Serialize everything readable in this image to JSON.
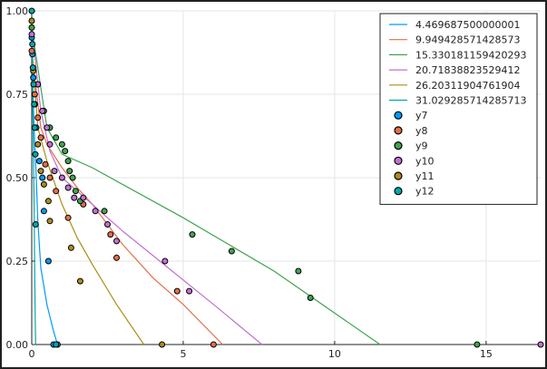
{
  "chart_data": {
    "type": "line",
    "title": "",
    "xlabel": "",
    "ylabel": "",
    "xlim": [
      0,
      16.8
    ],
    "ylim": [
      0,
      1.0
    ],
    "x_ticks": [
      0,
      5,
      10,
      15
    ],
    "y_ticks": [
      0.0,
      0.25,
      0.5,
      0.75,
      1.0
    ],
    "x_tick_labels": [
      "0",
      "5",
      "10",
      "15"
    ],
    "y_tick_labels": [
      "0.00",
      "0.25",
      "0.50",
      "0.75",
      "1.00"
    ],
    "grid": true,
    "legend_position": "top-right",
    "line_series": [
      {
        "name": "4.469687500000001",
        "color": "#009AFA",
        "points": [
          [
            0,
            1.0
          ],
          [
            0.01,
            0.9
          ],
          [
            0.03,
            0.8
          ],
          [
            0.06,
            0.7
          ],
          [
            0.1,
            0.6
          ],
          [
            0.15,
            0.5
          ],
          [
            0.2,
            0.37
          ],
          [
            0.3,
            0.23
          ],
          [
            0.5,
            0.12
          ],
          [
            0.72,
            0.04
          ],
          [
            0.85,
            0.0
          ]
        ]
      },
      {
        "name": "9.949428571428573",
        "color": "#E36F47",
        "points": [
          [
            0,
            0.87
          ],
          [
            0.3,
            0.65
          ],
          [
            0.5,
            0.6
          ],
          [
            1.0,
            0.53
          ],
          [
            1.5,
            0.47
          ],
          [
            2.0,
            0.42
          ],
          [
            3.0,
            0.3
          ],
          [
            4.0,
            0.2
          ],
          [
            5.0,
            0.12
          ],
          [
            6.3,
            0.0
          ]
        ]
      },
      {
        "name": "15.330181159420293",
        "color": "#3EA44E",
        "points": [
          [
            0,
            0.95
          ],
          [
            0.5,
            0.65
          ],
          [
            1.0,
            0.57
          ],
          [
            2.0,
            0.53
          ],
          [
            5.0,
            0.38
          ],
          [
            8.0,
            0.22
          ],
          [
            11.5,
            0.0
          ]
        ]
      },
      {
        "name": "20.71838823529412",
        "color": "#C271D2",
        "points": [
          [
            0,
            0.95
          ],
          [
            0.3,
            0.7
          ],
          [
            0.6,
            0.58
          ],
          [
            1.0,
            0.5
          ],
          [
            2.0,
            0.42
          ],
          [
            3.0,
            0.34
          ],
          [
            4.5,
            0.23
          ],
          [
            6.0,
            0.12
          ],
          [
            7.6,
            0.0
          ]
        ]
      },
      {
        "name": "26.20311904761904",
        "color": "#AC8D18",
        "points": [
          [
            0,
            0.9
          ],
          [
            0.2,
            0.65
          ],
          [
            0.5,
            0.55
          ],
          [
            1.0,
            0.42
          ],
          [
            1.5,
            0.32
          ],
          [
            2.0,
            0.24
          ],
          [
            2.8,
            0.12
          ],
          [
            3.7,
            0.0
          ]
        ]
      },
      {
        "name": "31.029285714285713",
        "color": "#00A9AD",
        "points": [
          [
            0,
            1.0
          ],
          [
            0.02,
            0.8
          ],
          [
            0.05,
            0.6
          ],
          [
            0.08,
            0.4
          ],
          [
            0.1,
            0.2
          ],
          [
            0.12,
            0.05
          ],
          [
            0.13,
            0.0
          ]
        ]
      }
    ],
    "scatter_series": [
      {
        "name": "y7",
        "color": "#009AFA",
        "points": [
          [
            0,
            0.92
          ],
          [
            0.02,
            0.87
          ],
          [
            0.05,
            0.8
          ],
          [
            0.1,
            0.72
          ],
          [
            0.15,
            0.65
          ],
          [
            0.25,
            0.55
          ],
          [
            0.35,
            0.5
          ],
          [
            0.4,
            0.4
          ],
          [
            0.55,
            0.25
          ],
          [
            0.72,
            0.0
          ],
          [
            0.85,
            0.0
          ]
        ]
      },
      {
        "name": "y8",
        "color": "#E36F47",
        "points": [
          [
            0,
            0.88
          ],
          [
            0.1,
            0.75
          ],
          [
            0.2,
            0.68
          ],
          [
            0.3,
            0.62
          ],
          [
            0.45,
            0.54
          ],
          [
            0.6,
            0.5
          ],
          [
            0.8,
            0.46
          ],
          [
            1.2,
            0.38
          ],
          [
            1.7,
            0.42
          ],
          [
            2.6,
            0.33
          ],
          [
            2.8,
            0.26
          ],
          [
            4.8,
            0.16
          ],
          [
            6.0,
            0.0
          ]
        ]
      },
      {
        "name": "y9",
        "color": "#3EA44E",
        "points": [
          [
            0,
            0.95
          ],
          [
            0.2,
            0.78
          ],
          [
            0.4,
            0.7
          ],
          [
            0.6,
            0.65
          ],
          [
            0.8,
            0.62
          ],
          [
            1.0,
            0.6
          ],
          [
            1.1,
            0.58
          ],
          [
            1.2,
            0.55
          ],
          [
            1.25,
            0.52
          ],
          [
            1.35,
            0.5
          ],
          [
            1.45,
            0.46
          ],
          [
            1.6,
            0.43
          ],
          [
            2.4,
            0.4
          ],
          [
            5.3,
            0.33
          ],
          [
            6.6,
            0.28
          ],
          [
            8.8,
            0.22
          ],
          [
            9.2,
            0.14
          ],
          [
            14.7,
            0.0
          ]
        ]
      },
      {
        "name": "y10",
        "color": "#C271D2",
        "points": [
          [
            0,
            0.93
          ],
          [
            0.2,
            0.78
          ],
          [
            0.35,
            0.7
          ],
          [
            0.5,
            0.65
          ],
          [
            0.6,
            0.6
          ],
          [
            0.75,
            0.52
          ],
          [
            1.0,
            0.5
          ],
          [
            1.2,
            0.47
          ],
          [
            1.4,
            0.44
          ],
          [
            1.7,
            0.44
          ],
          [
            2.1,
            0.4
          ],
          [
            2.5,
            0.36
          ],
          [
            2.8,
            0.31
          ],
          [
            4.4,
            0.25
          ],
          [
            5.2,
            0.16
          ],
          [
            16.8,
            0.0
          ]
        ]
      },
      {
        "name": "y11",
        "color": "#AC8D18",
        "points": [
          [
            0,
            0.97
          ],
          [
            0.05,
            0.82
          ],
          [
            0.1,
            0.72
          ],
          [
            0.2,
            0.6
          ],
          [
            0.3,
            0.52
          ],
          [
            0.4,
            0.48
          ],
          [
            0.55,
            0.43
          ],
          [
            0.6,
            0.37
          ],
          [
            1.3,
            0.29
          ],
          [
            1.6,
            0.19
          ],
          [
            4.3,
            0.0
          ]
        ]
      },
      {
        "name": "y12",
        "color": "#00A9AD",
        "points": [
          [
            0,
            1.0
          ],
          [
            0.02,
            0.9
          ],
          [
            0.04,
            0.83
          ],
          [
            0.06,
            0.78
          ],
          [
            0.08,
            0.72
          ],
          [
            0.1,
            0.65
          ],
          [
            0.12,
            0.57
          ],
          [
            0.13,
            0.36
          ],
          [
            0.8,
            0.0
          ]
        ]
      }
    ]
  }
}
